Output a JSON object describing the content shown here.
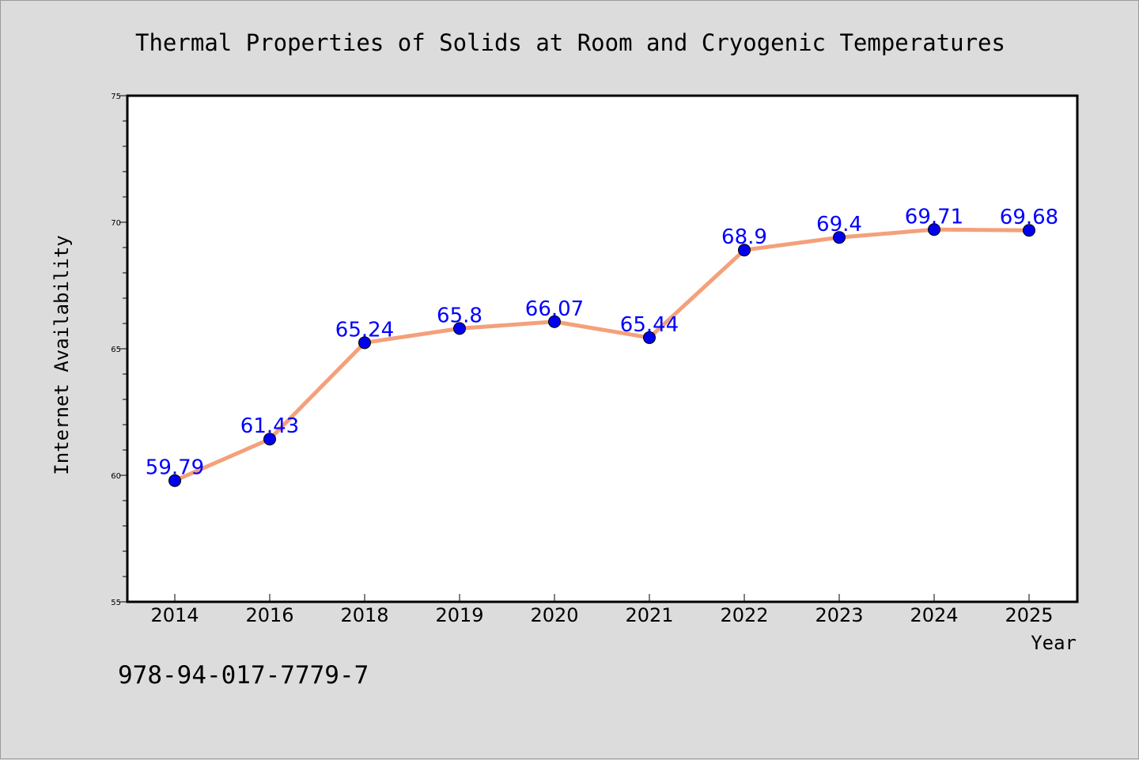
{
  "chart_data": {
    "type": "line",
    "title": "Thermal Properties of Solids at Room and Cryogenic Temperatures",
    "xlabel": "Year",
    "ylabel": "Internet Availability",
    "categories": [
      "2014",
      "2016",
      "2018",
      "2019",
      "2020",
      "2021",
      "2022",
      "2023",
      "2024",
      "2025"
    ],
    "series": [
      {
        "values": [
          59.79,
          61.43,
          65.24,
          65.8,
          66.07,
          65.44,
          68.9,
          69.4,
          69.71,
          69.68
        ],
        "data_labels": [
          "59.79",
          "61.43",
          "65.24",
          "65.8",
          "66.07",
          "65.44",
          "68.9",
          "69.4",
          "69.71",
          "69.68"
        ]
      }
    ],
    "ylim": [
      55,
      75
    ],
    "y_ticks": [
      "55",
      "60",
      "65",
      "70",
      "75"
    ],
    "grid": false,
    "legend": "none",
    "colors": {
      "line": "#f4a07a",
      "marker": "#0000ee",
      "data_label": "#0000ff",
      "background": "#dcdcdc",
      "plot_area": "#ffffff"
    }
  },
  "footer": {
    "isbn": "978-94-017-7779-7"
  }
}
